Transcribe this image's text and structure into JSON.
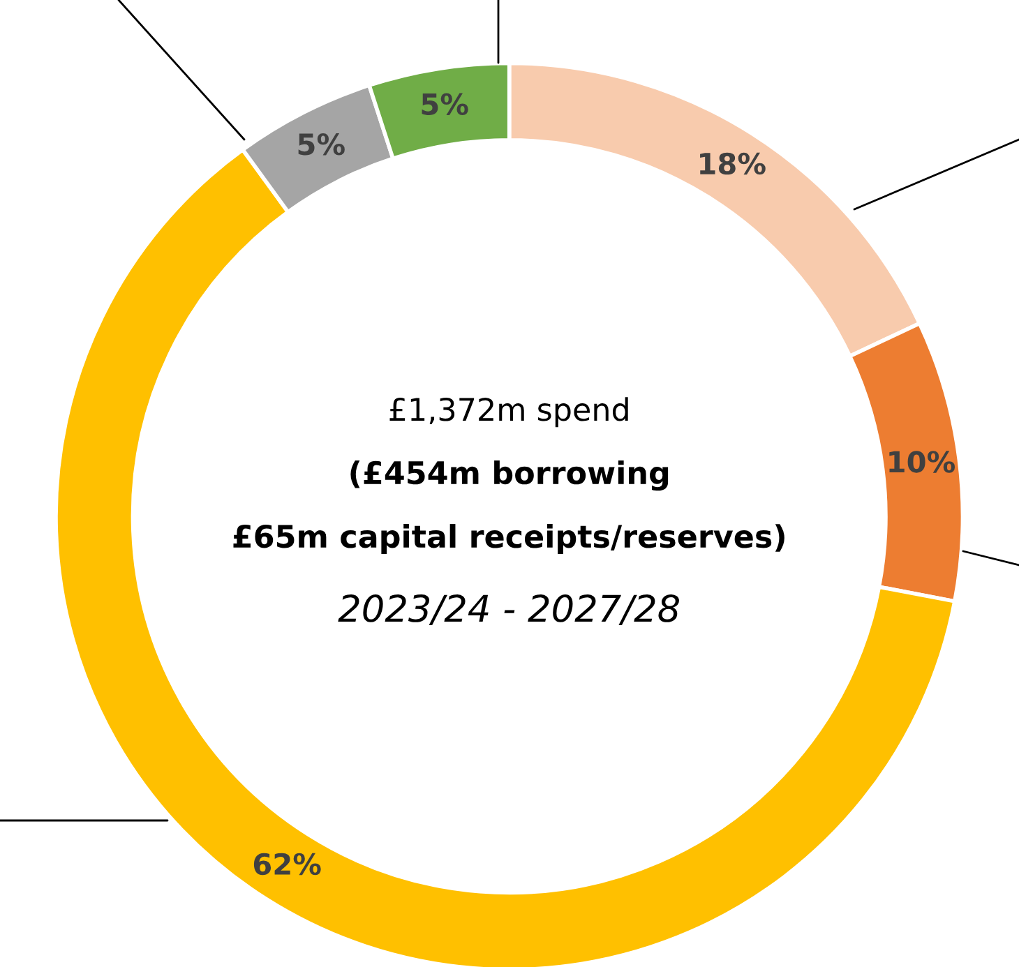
{
  "chart_data": {
    "type": "donut",
    "categories": [
      null,
      null,
      null,
      null,
      null
    ],
    "values": [
      18,
      10,
      62,
      5,
      5
    ],
    "colors": [
      "#f8cbad",
      "#ed7d31",
      "#ffc000",
      "#a5a5a5",
      "#70ad47"
    ],
    "value_labels": [
      "18%",
      "10%",
      "62%",
      "5%",
      "5%"
    ],
    "annotations": [
      "£1,372m spend",
      "(£454m borrowing",
      "£65m capital receipts/reserves)",
      "2023/24 - 2027/28"
    ]
  }
}
